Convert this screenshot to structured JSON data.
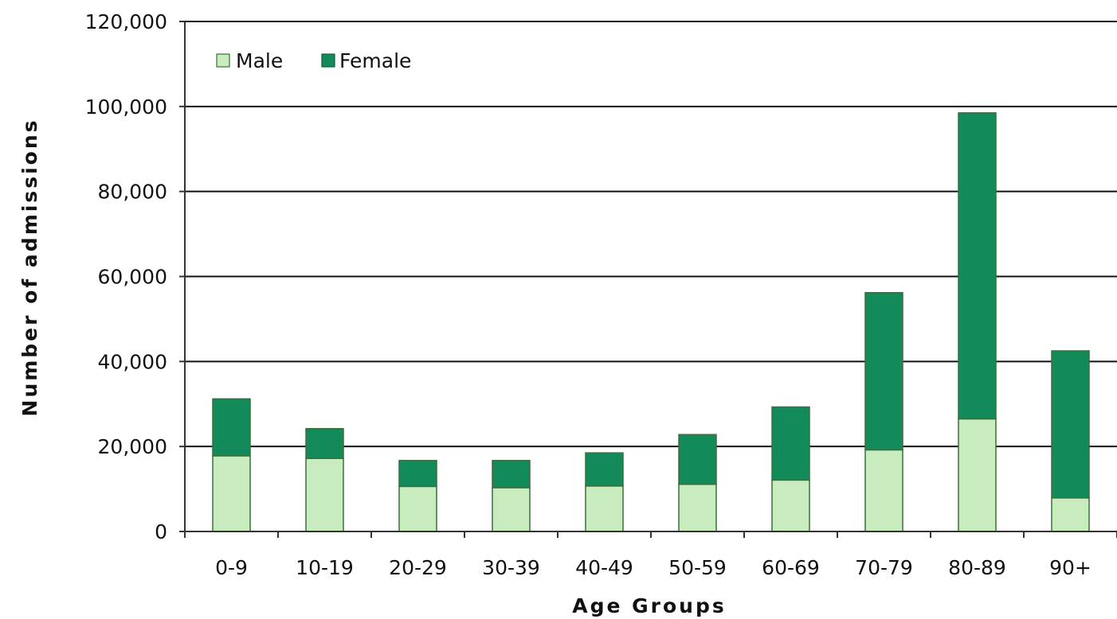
{
  "chart_data": {
    "type": "bar",
    "stacked": true,
    "categories": [
      "0-9",
      "10-19",
      "20-29",
      "30-39",
      "40-49",
      "50-59",
      "60-69",
      "70-79",
      "80-89",
      "90+"
    ],
    "series": [
      {
        "name": "Male",
        "color": "#c8ecbe",
        "values": [
          17800,
          17200,
          10600,
          10300,
          10700,
          11100,
          12100,
          19200,
          26500,
          7900
        ]
      },
      {
        "name": "Female",
        "color": "#138a5a",
        "values": [
          13400,
          7000,
          6100,
          6400,
          7800,
          11700,
          17200,
          37000,
          72000,
          34600
        ]
      }
    ],
    "xlabel": "Age Groups",
    "ylabel": "Number of admissions",
    "ylim": [
      0,
      120000
    ],
    "yticks": [
      {
        "value": 0,
        "label": "0"
      },
      {
        "value": 20000,
        "label": "20,000"
      },
      {
        "value": 40000,
        "label": "40,000"
      },
      {
        "value": 60000,
        "label": "60,000"
      },
      {
        "value": 80000,
        "label": "80,000"
      },
      {
        "value": 100000,
        "label": "100,000"
      },
      {
        "value": 120000,
        "label": "120,000"
      }
    ],
    "grid": true,
    "legend_position": "top-left",
    "colors": {
      "edge": "#3a6e3a",
      "grid": "#111111",
      "axis": "#333333"
    }
  }
}
